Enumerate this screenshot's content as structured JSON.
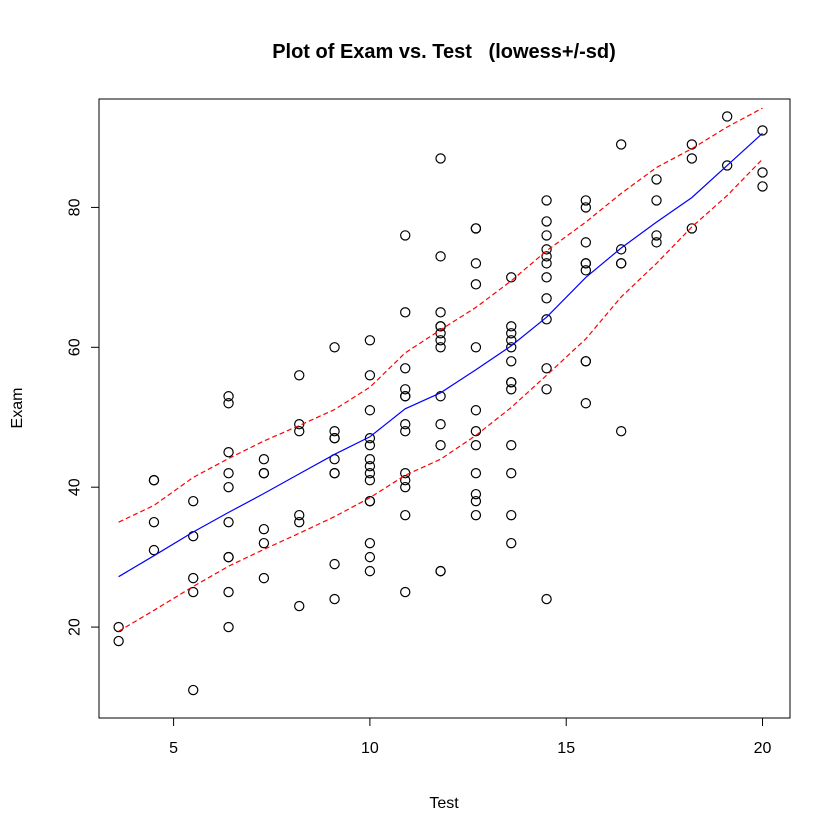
{
  "chart_data": {
    "type": "scatter",
    "title": "Plot of Exam vs. Test   (lowess+/-sd)",
    "xlabel": "Test",
    "ylabel": "Exam",
    "xlim": [
      3.1,
      20.7
    ],
    "ylim": [
      7,
      95.5
    ],
    "xticks": [
      5,
      10,
      15,
      20
    ],
    "yticks": [
      20,
      40,
      60,
      80
    ],
    "grid": false,
    "colors": {
      "points": "#000000",
      "lowess": "#0000ff",
      "sd_bands": "#ff0000"
    },
    "points": [
      [
        3.6,
        20
      ],
      [
        3.6,
        18
      ],
      [
        4.5,
        41
      ],
      [
        4.5,
        41
      ],
      [
        4.5,
        35
      ],
      [
        4.5,
        31
      ],
      [
        5.5,
        38
      ],
      [
        5.5,
        33
      ],
      [
        5.5,
        27
      ],
      [
        5.5,
        25
      ],
      [
        5.5,
        11
      ],
      [
        6.4,
        53
      ],
      [
        6.4,
        52
      ],
      [
        6.4,
        45
      ],
      [
        6.4,
        42
      ],
      [
        6.4,
        40
      ],
      [
        6.4,
        35
      ],
      [
        6.4,
        30
      ],
      [
        6.4,
        30
      ],
      [
        6.4,
        25
      ],
      [
        6.4,
        20
      ],
      [
        7.3,
        44
      ],
      [
        7.3,
        42
      ],
      [
        7.3,
        42
      ],
      [
        7.3,
        34
      ],
      [
        7.3,
        32
      ],
      [
        7.3,
        27
      ],
      [
        8.2,
        56
      ],
      [
        8.2,
        49
      ],
      [
        8.2,
        48
      ],
      [
        8.2,
        36
      ],
      [
        8.2,
        35
      ],
      [
        8.2,
        23
      ],
      [
        9.1,
        60
      ],
      [
        9.1,
        48
      ],
      [
        9.1,
        47
      ],
      [
        9.1,
        47
      ],
      [
        9.1,
        44
      ],
      [
        9.1,
        42
      ],
      [
        9.1,
        42
      ],
      [
        9.1,
        29
      ],
      [
        9.1,
        24
      ],
      [
        10,
        61
      ],
      [
        10,
        56
      ],
      [
        10,
        51
      ],
      [
        10,
        47
      ],
      [
        10,
        46
      ],
      [
        10,
        44
      ],
      [
        10,
        43
      ],
      [
        10,
        42
      ],
      [
        10,
        41
      ],
      [
        10,
        38
      ],
      [
        10,
        38
      ],
      [
        10,
        32
      ],
      [
        10,
        30
      ],
      [
        10,
        28
      ],
      [
        10.9,
        76
      ],
      [
        10.9,
        65
      ],
      [
        10.9,
        57
      ],
      [
        10.9,
        54
      ],
      [
        10.9,
        53
      ],
      [
        10.9,
        53
      ],
      [
        10.9,
        49
      ],
      [
        10.9,
        48
      ],
      [
        10.9,
        42
      ],
      [
        10.9,
        41
      ],
      [
        10.9,
        40
      ],
      [
        10.9,
        36
      ],
      [
        10.9,
        25
      ],
      [
        11.8,
        87
      ],
      [
        11.8,
        73
      ],
      [
        11.8,
        65
      ],
      [
        11.8,
        63
      ],
      [
        11.8,
        63
      ],
      [
        11.8,
        62
      ],
      [
        11.8,
        61
      ],
      [
        11.8,
        60
      ],
      [
        11.8,
        53
      ],
      [
        11.8,
        49
      ],
      [
        11.8,
        46
      ],
      [
        11.8,
        28
      ],
      [
        11.8,
        28
      ],
      [
        12.7,
        77
      ],
      [
        12.7,
        77
      ],
      [
        12.7,
        72
      ],
      [
        12.7,
        69
      ],
      [
        12.7,
        60
      ],
      [
        12.7,
        51
      ],
      [
        12.7,
        48
      ],
      [
        12.7,
        46
      ],
      [
        12.7,
        42
      ],
      [
        12.7,
        39
      ],
      [
        12.7,
        38
      ],
      [
        12.7,
        36
      ],
      [
        13.6,
        70
      ],
      [
        13.6,
        63
      ],
      [
        13.6,
        62
      ],
      [
        13.6,
        61
      ],
      [
        13.6,
        60
      ],
      [
        13.6,
        58
      ],
      [
        13.6,
        55
      ],
      [
        13.6,
        55
      ],
      [
        13.6,
        54
      ],
      [
        13.6,
        46
      ],
      [
        13.6,
        42
      ],
      [
        13.6,
        36
      ],
      [
        13.6,
        32
      ],
      [
        14.5,
        81
      ],
      [
        14.5,
        78
      ],
      [
        14.5,
        76
      ],
      [
        14.5,
        74
      ],
      [
        14.5,
        73
      ],
      [
        14.5,
        72
      ],
      [
        14.5,
        70
      ],
      [
        14.5,
        67
      ],
      [
        14.5,
        64
      ],
      [
        14.5,
        57
      ],
      [
        14.5,
        54
      ],
      [
        14.5,
        24
      ],
      [
        15.5,
        81
      ],
      [
        15.5,
        80
      ],
      [
        15.5,
        75
      ],
      [
        15.5,
        72
      ],
      [
        15.5,
        72
      ],
      [
        15.5,
        71
      ],
      [
        15.5,
        58
      ],
      [
        15.5,
        58
      ],
      [
        15.5,
        52
      ],
      [
        16.4,
        89
      ],
      [
        16.4,
        74
      ],
      [
        16.4,
        72
      ],
      [
        16.4,
        72
      ],
      [
        16.4,
        48
      ],
      [
        17.3,
        84
      ],
      [
        17.3,
        81
      ],
      [
        17.3,
        76
      ],
      [
        17.3,
        75
      ],
      [
        18.2,
        89
      ],
      [
        18.2,
        87
      ],
      [
        18.2,
        77
      ],
      [
        19.1,
        93
      ],
      [
        19.1,
        86
      ],
      [
        20,
        91
      ],
      [
        20,
        85
      ],
      [
        20,
        83
      ]
    ],
    "series": [
      {
        "x": [
          3.6,
          4.5,
          5.5,
          6.4,
          7.3,
          8.2,
          9.1,
          10,
          10.9,
          11.8,
          12.7,
          13.6,
          14.5,
          15.5,
          16.4,
          17.3,
          18.2,
          19.1,
          20
        ],
        "y": [
          27.2,
          30.2,
          33.6,
          36.4,
          39.1,
          41.9,
          44.7,
          47.2,
          51.2,
          53.5,
          56.8,
          60.2,
          64.3,
          70,
          74.2,
          77.9,
          81.4,
          86,
          90.6
        ]
      },
      {
        "x": [
          3.6,
          4.5,
          5.5,
          6.4,
          7.3,
          8.2,
          9.1,
          10,
          10.9,
          11.8,
          12.7,
          13.6,
          14.5,
          15.5,
          16.4,
          17.3,
          18.2,
          19.1,
          20
        ],
        "y": [
          35,
          37.4,
          41.4,
          44.1,
          46.6,
          48.8,
          51.1,
          54.3,
          59.2,
          62.5,
          65.7,
          69.5,
          73.8,
          77.9,
          82,
          85.7,
          88.4,
          91.5,
          94.2
        ]
      },
      {
        "x": [
          3.6,
          4.5,
          5.5,
          6.4,
          7.3,
          8.2,
          9.1,
          10,
          10.9,
          11.8,
          12.7,
          13.6,
          14.5,
          15.5,
          16.4,
          17.3,
          18.2,
          19.1,
          20
        ],
        "y": [
          19.4,
          22.4,
          25.8,
          28.7,
          31.1,
          33.4,
          35.8,
          38.5,
          41.7,
          44,
          47.4,
          51.4,
          56,
          61.2,
          67.2,
          72,
          77.2,
          81.7,
          86.9
        ]
      }
    ]
  }
}
